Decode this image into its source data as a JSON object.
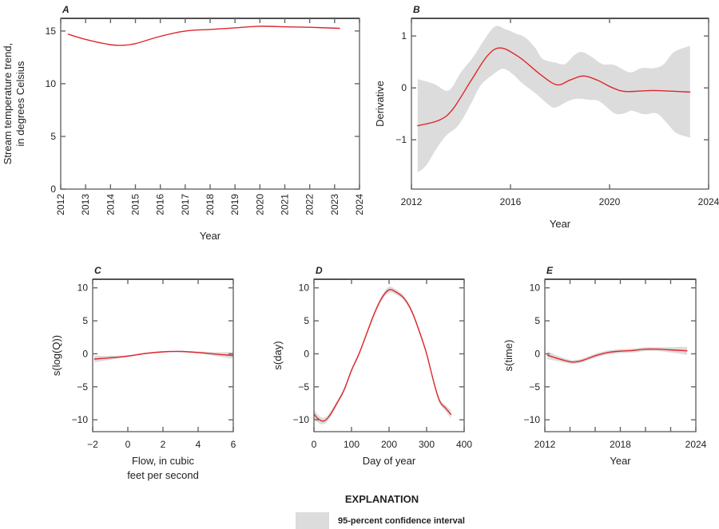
{
  "colors": {
    "line": "#e0262b",
    "band": "#dcdcdc",
    "frame": "#666666"
  },
  "legend": {
    "title": "EXPLANATION",
    "item": "95-percent confidence interval"
  },
  "chart_data": [
    {
      "panel": "A",
      "type": "line",
      "xlabel": "Year",
      "ylabel": [
        "Stream temperature trend,",
        "in degrees Celsius"
      ],
      "xlim": [
        2012,
        2024
      ],
      "ylim": [
        0,
        16.2
      ],
      "xticks": [
        2012,
        2013,
        2014,
        2015,
        2016,
        2017,
        2018,
        2019,
        2020,
        2021,
        2022,
        2023,
        2024
      ],
      "xtick_rotation": "vertical",
      "yticks": [
        0,
        5,
        10,
        15
      ],
      "x": [
        2012.3,
        2013,
        2014,
        2014.5,
        2015,
        2016,
        2017,
        2018,
        2019,
        2020,
        2021,
        2022,
        2023.2
      ],
      "y": [
        14.7,
        14.2,
        13.7,
        13.65,
        13.8,
        14.5,
        15.0,
        15.15,
        15.3,
        15.45,
        15.4,
        15.35,
        15.25
      ]
    },
    {
      "panel": "B",
      "type": "line",
      "xlabel": "Year",
      "ylabel": [
        "Derivative"
      ],
      "xlim": [
        2012,
        2024
      ],
      "ylim": [
        -1.95,
        1.34
      ],
      "xticks": [
        2012,
        2016,
        2020,
        2024
      ],
      "yticks": [
        -1,
        0,
        1
      ],
      "x": [
        2012.25,
        2013.13,
        2013.67,
        2014.42,
        2015.07,
        2015.6,
        2016.36,
        2017.2,
        2017.87,
        2018.4,
        2018.94,
        2019.5,
        2020.13,
        2020.67,
        2021.74,
        2023.25
      ],
      "y": [
        -0.73,
        -0.62,
        -0.41,
        0.15,
        0.62,
        0.77,
        0.59,
        0.26,
        0.06,
        0.15,
        0.23,
        0.15,
        0,
        -0.07,
        -0.05,
        -0.08
      ],
      "band_upper": {
        "x": [
          2012.25,
          2012.9,
          2013.5,
          2014,
          2014.5,
          2015,
          2015.4,
          2015.8,
          2016.2,
          2016.6,
          2017,
          2017.3,
          2017.8,
          2018.2,
          2018.6,
          2018.9,
          2019.3,
          2019.7,
          2020.2,
          2020.8,
          2021.3,
          2021.8,
          2022.2,
          2022.6,
          2023.25
        ],
        "y": [
          0.17,
          0.08,
          -0.05,
          0.3,
          0.6,
          0.97,
          1.19,
          1.13,
          1.05,
          0.97,
          0.77,
          0.56,
          0.49,
          0.46,
          0.64,
          0.69,
          0.59,
          0.46,
          0.44,
          0.3,
          0.38,
          0.38,
          0.46,
          0.69,
          0.81
        ]
      },
      "band_lower": {
        "x": [
          2012.25,
          2012.6,
          2013,
          2013.4,
          2013.9,
          2014.4,
          2014.8,
          2015.3,
          2015.7,
          2016.1,
          2016.5,
          2017,
          2017.5,
          2017.8,
          2018.3,
          2018.7,
          2019.2,
          2019.6,
          2020.2,
          2020.6,
          2020.9,
          2021.4,
          2021.9,
          2022.3,
          2022.7,
          2023.25
        ],
        "y": [
          -1.63,
          -1.49,
          -1.18,
          -0.92,
          -0.72,
          -0.31,
          0.05,
          0.26,
          0.37,
          0.26,
          0.08,
          -0.1,
          -0.31,
          -0.38,
          -0.26,
          -0.21,
          -0.23,
          -0.26,
          -0.49,
          -0.49,
          -0.44,
          -0.51,
          -0.49,
          -0.67,
          -0.87,
          -0.96
        ]
      }
    },
    {
      "panel": "C",
      "type": "line",
      "xlabel": [
        "Flow, in cubic",
        "feet per second"
      ],
      "ylabel": [
        "s(log(Q))"
      ],
      "xlim": [
        -2,
        6
      ],
      "ylim": [
        -11.8,
        11.3
      ],
      "xticks": [
        -2,
        0,
        2,
        4,
        6
      ],
      "yticks": [
        -10,
        -5,
        0,
        5,
        10
      ],
      "x": [
        -1.9,
        -1,
        0,
        1,
        2,
        3,
        4,
        5,
        6
      ],
      "y": [
        -0.8,
        -0.6,
        -0.35,
        0.05,
        0.3,
        0.35,
        0.2,
        -0.05,
        -0.25
      ],
      "ci_halfwidth": [
        0.5,
        0.3,
        0.15,
        0.1,
        0.1,
        0.1,
        0.15,
        0.3,
        0.5
      ]
    },
    {
      "panel": "D",
      "type": "line",
      "xlabel": [
        "Day of year"
      ],
      "ylabel": [
        "s(day)"
      ],
      "xlim": [
        0,
        400
      ],
      "ylim": [
        -11.8,
        11.3
      ],
      "xticks": [
        0,
        100,
        200,
        300,
        400
      ],
      "yticks": [
        -10,
        -5,
        0,
        5,
        10
      ],
      "x": [
        0,
        10,
        25,
        40,
        60,
        80,
        100,
        120,
        140,
        160,
        180,
        200,
        220,
        240,
        260,
        280,
        300,
        320,
        335,
        350,
        365
      ],
      "y": [
        -9.1,
        -9.8,
        -10.2,
        -9.5,
        -7.6,
        -5.5,
        -2.5,
        0,
        3,
        6,
        8.4,
        9.7,
        9.3,
        8.4,
        6.5,
        3.5,
        0,
        -4.5,
        -7.2,
        -8.2,
        -9.2
      ],
      "ci_halfwidth": [
        0.7,
        0.6,
        0.5,
        0.4,
        0.35,
        0.3,
        0.3,
        0.3,
        0.3,
        0.3,
        0.35,
        0.45,
        0.4,
        0.35,
        0.3,
        0.3,
        0.3,
        0.3,
        0.35,
        0.45,
        0.6
      ]
    },
    {
      "panel": "E",
      "type": "line",
      "xlabel": [
        "Year"
      ],
      "ylabel": [
        "s(time)"
      ],
      "xlim": [
        2012,
        2024
      ],
      "ylim": [
        -11.8,
        11.3
      ],
      "xticks": [
        2012,
        2014,
        2016,
        2018,
        2020,
        2022,
        2024
      ],
      "xticklabels": [
        "2012",
        "",
        "",
        "2018",
        "",
        "",
        "2024"
      ],
      "yticks": [
        -10,
        -5,
        0,
        5,
        10
      ],
      "x": [
        2012.2,
        2013,
        2014,
        2014.5,
        2015,
        2016,
        2017,
        2018,
        2019,
        2020,
        2021,
        2022,
        2023.3
      ],
      "y": [
        -0.2,
        -0.7,
        -1.2,
        -1.2,
        -1.0,
        -0.3,
        0.2,
        0.4,
        0.5,
        0.7,
        0.7,
        0.6,
        0.45
      ],
      "ci_halfwidth": [
        0.6,
        0.4,
        0.3,
        0.3,
        0.3,
        0.3,
        0.3,
        0.3,
        0.3,
        0.3,
        0.3,
        0.4,
        0.6
      ]
    }
  ]
}
